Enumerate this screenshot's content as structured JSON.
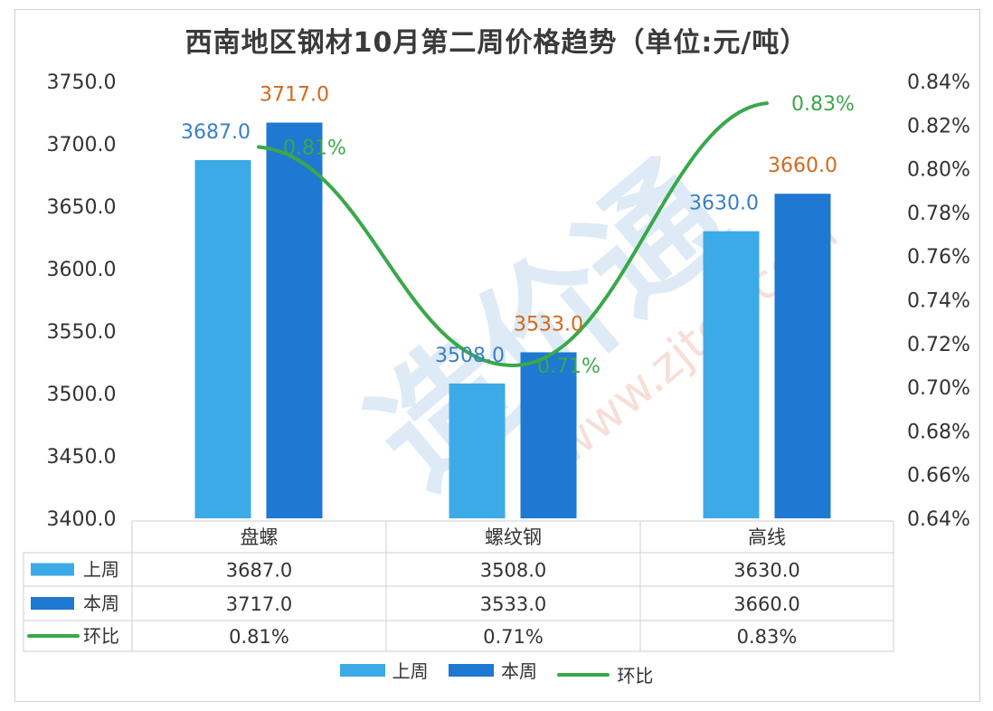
{
  "chart_data": {
    "type": "bar",
    "title": "西南地区钢材10月第二周价格趋势（单位:元/吨）",
    "categories": [
      "盘螺",
      "螺纹钢",
      "高线"
    ],
    "series": [
      {
        "name": "上周",
        "type": "bar",
        "values": [
          3687.0,
          3508.0,
          3630.0
        ],
        "color": "#3daae8",
        "label_color": "#3a7fc4"
      },
      {
        "name": "本周",
        "type": "bar",
        "values": [
          3717.0,
          3533.0,
          3660.0
        ],
        "color": "#1f78d1",
        "label_color": "#d2691e"
      },
      {
        "name": "环比",
        "type": "line",
        "axis": "right",
        "values": [
          0.81,
          0.71,
          0.83
        ],
        "display": [
          "0.81%",
          "0.71%",
          "0.83%"
        ],
        "color": "#3aa84a",
        "label_color": "#3aa84a"
      }
    ],
    "y_left": {
      "min": 3400,
      "max": 3750,
      "ticks": [
        "3400.0",
        "3450.0",
        "3500.0",
        "3550.0",
        "3600.0",
        "3650.0",
        "3700.0",
        "3750.0"
      ]
    },
    "y_right": {
      "min": 0.64,
      "max": 0.84,
      "ticks": [
        "0.64%",
        "0.66%",
        "0.68%",
        "0.70%",
        "0.72%",
        "0.74%",
        "0.76%",
        "0.78%",
        "0.80%",
        "0.82%",
        "0.84%"
      ]
    },
    "data_table": {
      "rows": [
        {
          "name": "上周",
          "cells": [
            "3687.0",
            "3508.0",
            "3630.0"
          ]
        },
        {
          "name": "本周",
          "cells": [
            "3717.0",
            "3533.0",
            "3660.0"
          ]
        },
        {
          "name": "环比",
          "cells": [
            "0.81%",
            "0.71%",
            "0.83%"
          ]
        }
      ]
    },
    "legend": {
      "position": "bottom"
    },
    "grid": false
  },
  "watermark": {
    "text": "造价通",
    "url": "www.zjtcn.com"
  }
}
